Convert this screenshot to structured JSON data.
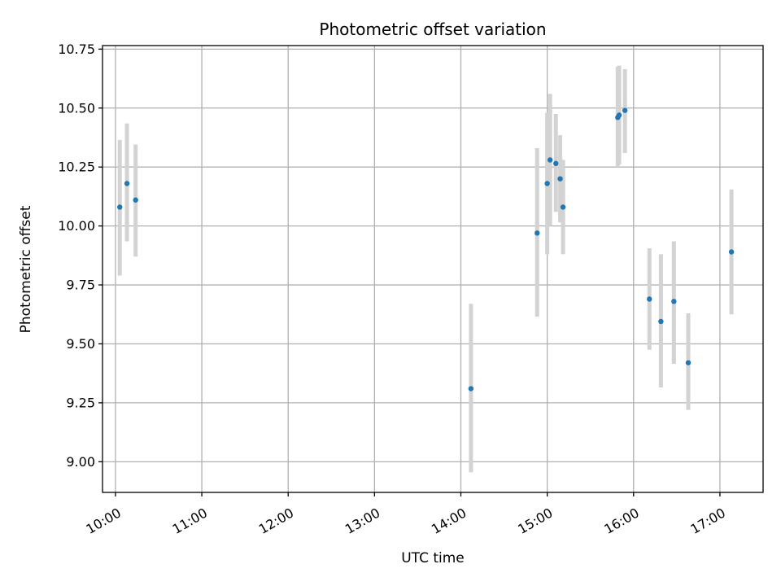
{
  "chart_data": {
    "type": "scatter",
    "title": "Photometric offset variation",
    "xlabel": "UTC time",
    "ylabel": "Photometric offset",
    "x_axis_type": "time",
    "xlim": [
      "09:51",
      "17:30"
    ],
    "ylim": [
      8.87,
      10.765
    ],
    "x_ticks": [
      "10:00",
      "11:00",
      "12:00",
      "13:00",
      "14:00",
      "15:00",
      "16:00",
      "17:00"
    ],
    "y_ticks": [
      "9.00",
      "9.25",
      "9.50",
      "9.75",
      "10.00",
      "10.25",
      "10.50",
      "10.75"
    ],
    "grid": true,
    "point_color": "#1f77b4",
    "errorbar_color": "#d3d3d3",
    "points": [
      {
        "time": "10:03",
        "y": 10.08,
        "yerr_low": 9.79,
        "yerr_high": 10.365
      },
      {
        "time": "10:08",
        "y": 10.18,
        "yerr_low": 9.935,
        "yerr_high": 10.435
      },
      {
        "time": "10:14",
        "y": 10.11,
        "yerr_low": 9.87,
        "yerr_high": 10.345
      },
      {
        "time": "14:07",
        "y": 9.31,
        "yerr_low": 8.955,
        "yerr_high": 9.67
      },
      {
        "time": "14:53",
        "y": 9.97,
        "yerr_low": 9.615,
        "yerr_high": 10.33
      },
      {
        "time": "15:00",
        "y": 10.18,
        "yerr_low": 9.88,
        "yerr_high": 10.48
      },
      {
        "time": "15:02",
        "y": 10.28,
        "yerr_low": 10.0,
        "yerr_high": 10.56
      },
      {
        "time": "15:06",
        "y": 10.265,
        "yerr_low": 10.06,
        "yerr_high": 10.475
      },
      {
        "time": "15:09",
        "y": 10.2,
        "yerr_low": 10.015,
        "yerr_high": 10.385
      },
      {
        "time": "15:11",
        "y": 10.08,
        "yerr_low": 9.88,
        "yerr_high": 10.28
      },
      {
        "time": "15:49",
        "y": 10.46,
        "yerr_low": 10.25,
        "yerr_high": 10.675
      },
      {
        "time": "15:50",
        "y": 10.47,
        "yerr_low": 10.26,
        "yerr_high": 10.68
      },
      {
        "time": "15:54",
        "y": 10.49,
        "yerr_low": 10.31,
        "yerr_high": 10.665
      },
      {
        "time": "16:11",
        "y": 9.69,
        "yerr_low": 9.475,
        "yerr_high": 9.905
      },
      {
        "time": "16:19",
        "y": 9.595,
        "yerr_low": 9.315,
        "yerr_high": 9.88
      },
      {
        "time": "16:28",
        "y": 9.68,
        "yerr_low": 9.415,
        "yerr_high": 9.935
      },
      {
        "time": "16:38",
        "y": 9.42,
        "yerr_low": 9.22,
        "yerr_high": 9.63
      },
      {
        "time": "17:08",
        "y": 9.89,
        "yerr_low": 9.625,
        "yerr_high": 10.155
      }
    ]
  }
}
